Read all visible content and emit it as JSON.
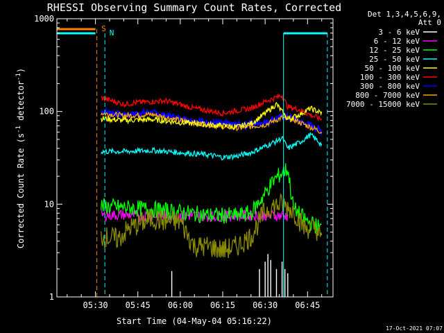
{
  "chart_data": {
    "type": "line",
    "title": "RHESSI Observing Summary Count Rates, Corrected",
    "xlabel": "Start Time (04-May-04 05:16:22)",
    "ylabel": "Corrected Count Rate (s⁻¹ detector⁻¹)",
    "ylabel_main": "Corrected Count Rate (s",
    "ylabel_sup1": "-1",
    "ylabel_mid": " detector",
    "ylabel_sup2": "-1",
    "ylabel_end": ")",
    "y_scale": "log",
    "ylim": [
      1,
      1000
    ],
    "xlim": [
      "05:16:22",
      "06:54:00"
    ],
    "x_ticks": [
      "05:30",
      "05:45",
      "06:00",
      "06:15",
      "06:30",
      "06:45"
    ],
    "y_ticks": [
      "1",
      "10",
      "100",
      "1000"
    ],
    "legend_placement": "right",
    "legend_header": [
      "Det 1,3,4,5,6,9,",
      "Att 0"
    ],
    "series": [
      {
        "name": "3 - 6 keV",
        "color": "#ffffff",
        "x": [
          "05:57",
          "06:28",
          "06:30",
          "06:31",
          "06:32",
          "06:34",
          "06:36",
          "06:37",
          "06:38"
        ],
        "values": [
          1.9,
          2.0,
          2.4,
          2.9,
          2.5,
          2.0,
          2.4,
          2.0,
          1.8
        ]
      },
      {
        "name": "6 - 12 keV",
        "color": "#ff00ff",
        "x": [
          "05:32",
          "05:40",
          "05:50",
          "06:00",
          "06:10",
          "06:20",
          "06:30",
          "06:38"
        ],
        "values": [
          7.6,
          7.7,
          7.5,
          7.6,
          7.4,
          7.5,
          7.6,
          7.5
        ]
      },
      {
        "name": "12 - 25 keV",
        "color": "#00ff00",
        "x": [
          "05:32",
          "05:40",
          "05:50",
          "06:00",
          "06:10",
          "06:20",
          "06:25",
          "06:30",
          "06:33",
          "06:36",
          "06:38",
          "06:40",
          "06:45",
          "06:50"
        ],
        "values": [
          9.5,
          9.2,
          8.8,
          8.2,
          7.6,
          7.5,
          8.0,
          13.0,
          18.0,
          22.0,
          24.0,
          9.0,
          6.5,
          5.5
        ]
      },
      {
        "name": "25 - 50 keV",
        "color": "#00ffff",
        "x": [
          "05:32",
          "05:40",
          "05:50",
          "06:00",
          "06:10",
          "06:15",
          "06:20",
          "06:25",
          "06:30",
          "06:34",
          "06:36",
          "06:38",
          "06:42",
          "06:46",
          "06:48",
          "06:50"
        ],
        "values": [
          37,
          37,
          38,
          36,
          34,
          32,
          33,
          36,
          42,
          48,
          52,
          40,
          46,
          56,
          50,
          44
        ]
      },
      {
        "name": "50 - 100 keV",
        "color": "#ffff00",
        "x": [
          "05:32",
          "05:40",
          "05:50",
          "06:00",
          "06:10",
          "06:20",
          "06:25",
          "06:30",
          "06:34",
          "06:38",
          "06:42",
          "06:46",
          "06:50"
        ],
        "values": [
          84,
          80,
          82,
          76,
          72,
          68,
          74,
          95,
          120,
          82,
          92,
          108,
          96
        ]
      },
      {
        "name": "100 - 300 keV",
        "color": "#ff0000",
        "x": [
          "05:32",
          "05:40",
          "05:45",
          "05:55",
          "06:05",
          "06:15",
          "06:25",
          "06:30",
          "06:36",
          "06:38",
          "06:42",
          "06:46",
          "06:50"
        ],
        "values": [
          140,
          120,
          125,
          130,
          108,
          96,
          108,
          128,
          150,
          112,
          105,
          92,
          82
        ]
      },
      {
        "name": "300 - 800 keV",
        "color": "#0000ff",
        "x": [
          "05:32",
          "05:40",
          "05:50",
          "06:00",
          "06:10",
          "06:20",
          "06:30",
          "06:36",
          "06:40",
          "06:44",
          "06:48",
          "06:50"
        ],
        "values": [
          100,
          92,
          98,
          84,
          76,
          72,
          76,
          88,
          84,
          74,
          66,
          62
        ]
      },
      {
        "name": "800 - 7000 keV",
        "color": "#ffa500",
        "x": [
          "05:32",
          "05:40",
          "05:50",
          "06:00",
          "06:10",
          "06:20",
          "06:30",
          "06:36",
          "06:40",
          "06:44",
          "06:48",
          "06:50"
        ],
        "values": [
          96,
          90,
          93,
          80,
          72,
          66,
          72,
          86,
          82,
          72,
          64,
          60
        ]
      },
      {
        "name": "7000 - 15000 keV",
        "color": "#8b8b00",
        "x": [
          "05:32",
          "05:38",
          "05:42",
          "05:50",
          "05:55",
          "06:00",
          "06:05",
          "06:10",
          "06:15",
          "06:20",
          "06:25",
          "06:30",
          "06:33",
          "06:36",
          "06:40",
          "06:44",
          "06:48",
          "06:50"
        ],
        "values": [
          4.5,
          4.2,
          5.5,
          7.0,
          6.5,
          6.5,
          3.5,
          3.5,
          3.2,
          3.5,
          4.5,
          8.5,
          9.5,
          10.0,
          8.5,
          5.5,
          5.5,
          4.0
        ]
      }
    ],
    "annotations": [
      {
        "text": "S",
        "x": "05:16:22",
        "color": "#ff7f00"
      },
      {
        "text": "N",
        "x": "05:16:22",
        "color": "#00ffff"
      }
    ],
    "footer": "17-Oct-2021 07:07"
  }
}
